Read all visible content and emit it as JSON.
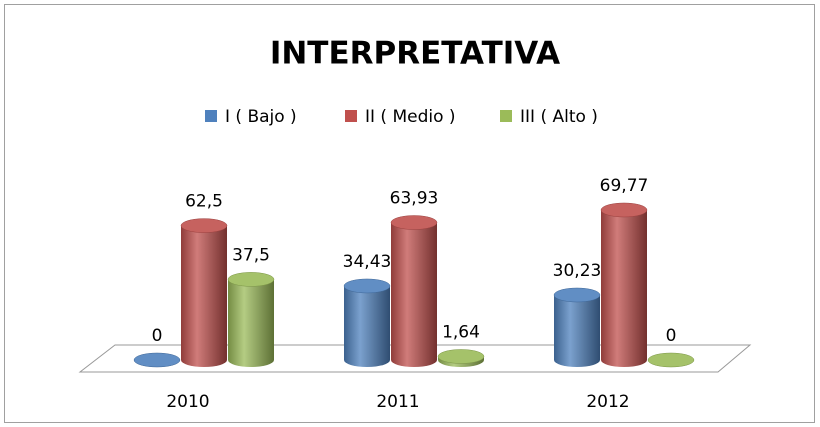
{
  "chart_data": {
    "type": "bar3d",
    "title": "INTERPRETATIVA",
    "categories": [
      "2010",
      "2011",
      "2012"
    ],
    "series": [
      {
        "name": "I ( Bajo )",
        "color": "#4f81bd",
        "values": [
          0,
          34.43,
          30.23
        ],
        "value_labels": [
          "0",
          "34,43",
          "30,23"
        ]
      },
      {
        "name": "II ( Medio )",
        "color": "#c0504d",
        "values": [
          62.5,
          63.93,
          69.77
        ],
        "value_labels": [
          "62,5",
          "63,93",
          "69,77"
        ]
      },
      {
        "name": "III ( Alto )",
        "color": "#9bbb59",
        "values": [
          37.5,
          1.64,
          0
        ],
        "value_labels": [
          "37,5",
          "1,64",
          "0"
        ]
      }
    ],
    "ylim": [
      0,
      80
    ],
    "legend": "top"
  }
}
